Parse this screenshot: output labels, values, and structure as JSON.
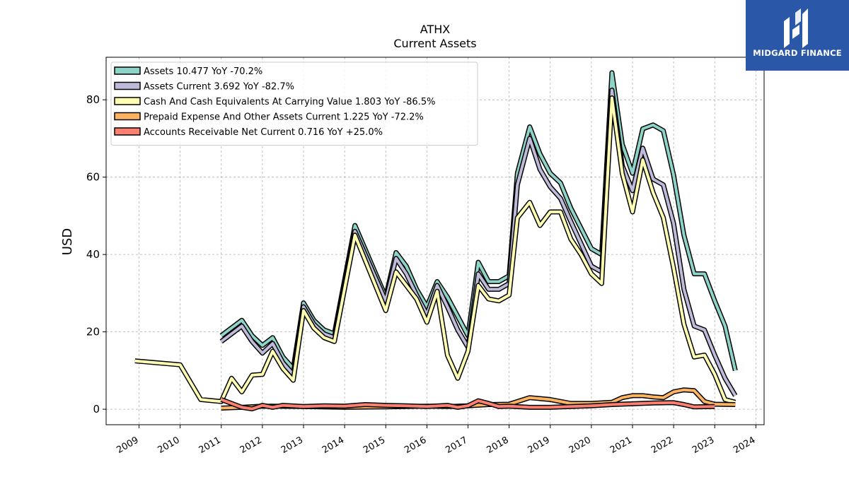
{
  "logo": {
    "text": "MIDGARD FINANCE",
    "bg_color": "#2a57a7"
  },
  "chart_data": {
    "type": "line",
    "title": "ATHX",
    "subtitle": "Current  Assets",
    "ylabel": "USD",
    "xlim": [
      2008.2,
      2024.2
    ],
    "ylim": [
      -4,
      91
    ],
    "x_ticks": [
      2009,
      2010,
      2011,
      2012,
      2013,
      2014,
      2015,
      2016,
      2017,
      2018,
      2019,
      2020,
      2021,
      2022,
      2023,
      2024
    ],
    "y_ticks": [
      0,
      20,
      40,
      60,
      80
    ],
    "grid": true,
    "legend_position": "top-left",
    "series": [
      {
        "name": "Assets  10.477 YoY -70.2%",
        "color": "#8dd3c7",
        "x": [
          2011.0,
          2011.5,
          2011.75,
          2012.0,
          2012.25,
          2012.5,
          2012.75,
          2013.0,
          2013.25,
          2013.5,
          2013.75,
          2014.25,
          2015.0,
          2015.25,
          2015.5,
          2015.75,
          2016.0,
          2016.25,
          2016.5,
          2016.75,
          2017.0,
          2017.25,
          2017.5,
          2017.75,
          2018.0,
          2018.2,
          2018.5,
          2018.75,
          2019.0,
          2019.25,
          2019.5,
          2020.0,
          2020.25,
          2020.5,
          2020.75,
          2021.0,
          2021.25,
          2021.5,
          2021.75,
          2022.0,
          2022.25,
          2022.5,
          2022.75,
          2023.0,
          2023.25,
          2023.5
        ],
        "y": [
          19,
          23,
          19,
          16.5,
          18.5,
          13.5,
          10.5,
          27.5,
          23,
          20.5,
          19.5,
          47.5,
          29,
          40.5,
          37,
          31,
          26.5,
          33,
          29,
          24,
          19,
          38,
          33,
          33,
          34.5,
          61,
          73,
          66,
          61,
          58.5,
          52,
          41.5,
          40,
          87,
          68.5,
          61,
          72.5,
          73.5,
          72,
          60.5,
          45,
          35,
          35,
          28,
          21.5,
          10
        ]
      },
      {
        "name": "Assets Current  3.692 YoY -82.7%",
        "color": "#bebada",
        "x": [
          2011.0,
          2011.5,
          2011.75,
          2012.0,
          2012.25,
          2012.5,
          2012.75,
          2013.0,
          2013.25,
          2013.5,
          2013.75,
          2014.25,
          2015.0,
          2015.25,
          2015.5,
          2015.75,
          2016.0,
          2016.25,
          2016.5,
          2016.75,
          2017.0,
          2017.25,
          2017.5,
          2017.75,
          2018.0,
          2018.2,
          2018.5,
          2018.75,
          2019.0,
          2019.25,
          2019.5,
          2020.0,
          2020.25,
          2020.5,
          2020.75,
          2021.0,
          2021.25,
          2021.5,
          2021.75,
          2022.0,
          2022.25,
          2022.5,
          2022.75,
          2023.0,
          2023.25,
          2023.5
        ],
        "y": [
          17.5,
          21.5,
          17.5,
          14.5,
          17,
          12,
          9,
          26.5,
          22,
          19.5,
          18.5,
          46,
          28,
          39,
          35,
          29.5,
          24.5,
          32,
          26.5,
          20.5,
          16,
          35,
          31,
          31,
          32.5,
          58,
          70,
          62,
          57.5,
          54.5,
          48.5,
          37,
          35.5,
          82.5,
          63,
          56.5,
          67.5,
          59.5,
          58,
          48,
          31,
          21.5,
          20.5,
          14,
          8,
          3.5
        ]
      },
      {
        "name": "Cash And Cash Equivalents At Carrying Value  1.803 YoY -86.5%",
        "color": "#ffffb3",
        "x": [
          2008.9,
          2010.0,
          2010.5,
          2011.0,
          2011.25,
          2011.5,
          2011.75,
          2012.0,
          2012.25,
          2012.5,
          2012.75,
          2013.0,
          2013.25,
          2013.5,
          2013.75,
          2014.25,
          2015.0,
          2015.25,
          2015.5,
          2015.75,
          2016.0,
          2016.25,
          2016.5,
          2016.75,
          2017.0,
          2017.25,
          2017.5,
          2017.75,
          2018.0,
          2018.2,
          2018.5,
          2018.75,
          2019.0,
          2019.25,
          2019.5,
          2019.75,
          2020.0,
          2020.25,
          2020.5,
          2020.75,
          2021.0,
          2021.25,
          2021.5,
          2021.75,
          2022.0,
          2022.25,
          2022.5,
          2022.75,
          2023.0,
          2023.25,
          2023.5
        ],
        "y": [
          12.5,
          11.5,
          2.5,
          2,
          8,
          4.5,
          8.8,
          9,
          15,
          10.5,
          7.5,
          25.5,
          21,
          18.5,
          17.5,
          45,
          25.5,
          35.5,
          32,
          28.5,
          22.5,
          30.5,
          14,
          8,
          15,
          32,
          28.5,
          28,
          29.5,
          49.5,
          53.5,
          47.5,
          51,
          51,
          44,
          40,
          35,
          32.5,
          80.5,
          61,
          51,
          64.5,
          56,
          49.5,
          36.5,
          22,
          13.5,
          14,
          9,
          2.5,
          1.8
        ]
      },
      {
        "name": "Prepaid Expense And Other Assets Current  1.225 YoY -72.2%",
        "color": "#fdb462",
        "x": [
          2011.0,
          2011.5,
          2012.0,
          2013.0,
          2014.0,
          2015.0,
          2016.0,
          2016.5,
          2017.0,
          2017.5,
          2018.0,
          2018.5,
          2019.0,
          2019.5,
          2020.0,
          2020.5,
          2020.75,
          2021.0,
          2021.25,
          2021.5,
          2021.75,
          2022.0,
          2022.25,
          2022.5,
          2022.75,
          2023.0,
          2023.5
        ],
        "y": [
          0.3,
          0.5,
          0.8,
          0.7,
          0.5,
          0.6,
          0.8,
          0.7,
          0.9,
          1.2,
          1.3,
          3,
          2.5,
          1.5,
          1.5,
          1.8,
          3,
          3.5,
          3.5,
          3.2,
          3,
          4.5,
          5,
          4.8,
          2,
          1.3,
          1.2
        ]
      },
      {
        "name": "Accounts Receivable Net Current  0.716 YoY +25.0%",
        "color": "#fb8072",
        "x": [
          2011.0,
          2011.5,
          2011.75,
          2012.0,
          2012.25,
          2012.5,
          2013.0,
          2013.5,
          2014.0,
          2014.5,
          2015.0,
          2015.5,
          2016.0,
          2016.5,
          2016.75,
          2017.0,
          2017.25,
          2017.5,
          2017.75,
          2018.0,
          2018.5,
          2019.0,
          2019.5,
          2020.0,
          2020.5,
          2021.0,
          2021.5,
          2022.0,
          2022.25,
          2022.5,
          2023.0
        ],
        "y": [
          2.5,
          0.5,
          0.1,
          1,
          0.5,
          1,
          0.7,
          0.9,
          0.8,
          1.2,
          1.0,
          0.9,
          0.7,
          1.0,
          0.5,
          0.9,
          2.2,
          1.5,
          0.7,
          0.8,
          0.5,
          0.5,
          0.7,
          0.9,
          1.2,
          1.4,
          1.6,
          1.7,
          1.2,
          0.6,
          0.7
        ]
      }
    ]
  }
}
